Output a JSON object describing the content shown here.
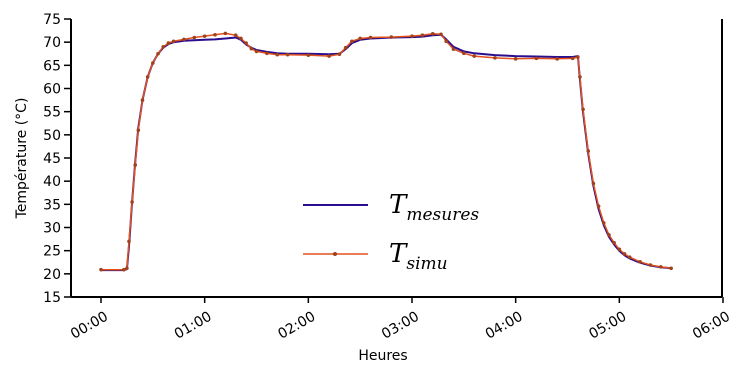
{
  "chart_data": {
    "type": "line",
    "title": "",
    "xlabel": "Heures",
    "ylabel": "Température (°C)",
    "xlim": [
      0,
      6
    ],
    "ylim": [
      15,
      75
    ],
    "xticks": [
      0,
      1,
      2,
      3,
      4,
      5,
      6
    ],
    "xtick_labels": [
      "00:00",
      "01:00",
      "02:00",
      "03:00",
      "04:00",
      "05:00",
      "06:00"
    ],
    "yticks": [
      15,
      20,
      25,
      30,
      35,
      40,
      45,
      50,
      55,
      60,
      65,
      70,
      75
    ],
    "ytick_labels": [
      "15",
      "20",
      "25",
      "30",
      "35",
      "40",
      "45",
      "50",
      "55",
      "60",
      "65",
      "70",
      "75"
    ],
    "grid": false,
    "legend_position": "lower-center",
    "series": [
      {
        "name_base": "T",
        "name_sub": "mesures",
        "color": "#2a0e8f",
        "marker": "none",
        "points": [
          [
            0.0,
            20.8
          ],
          [
            0.22,
            20.8
          ],
          [
            0.25,
            21.0
          ],
          [
            0.27,
            26.0
          ],
          [
            0.3,
            35.5
          ],
          [
            0.33,
            44.0
          ],
          [
            0.36,
            51.5
          ],
          [
            0.4,
            57.5
          ],
          [
            0.45,
            62.5
          ],
          [
            0.5,
            65.5
          ],
          [
            0.55,
            67.5
          ],
          [
            0.6,
            68.8
          ],
          [
            0.65,
            69.6
          ],
          [
            0.7,
            70.0
          ],
          [
            0.8,
            70.3
          ],
          [
            0.9,
            70.4
          ],
          [
            1.0,
            70.5
          ],
          [
            1.1,
            70.6
          ],
          [
            1.2,
            70.8
          ],
          [
            1.3,
            71.0
          ],
          [
            1.35,
            70.5
          ],
          [
            1.4,
            69.5
          ],
          [
            1.45,
            68.8
          ],
          [
            1.5,
            68.3
          ],
          [
            1.6,
            67.9
          ],
          [
            1.7,
            67.6
          ],
          [
            1.8,
            67.5
          ],
          [
            2.0,
            67.5
          ],
          [
            2.2,
            67.4
          ],
          [
            2.3,
            67.5
          ],
          [
            2.36,
            68.5
          ],
          [
            2.42,
            69.8
          ],
          [
            2.5,
            70.5
          ],
          [
            2.6,
            70.8
          ],
          [
            2.8,
            71.0
          ],
          [
            3.0,
            71.1
          ],
          [
            3.1,
            71.2
          ],
          [
            3.2,
            71.5
          ],
          [
            3.28,
            71.6
          ],
          [
            3.33,
            70.6
          ],
          [
            3.4,
            69.0
          ],
          [
            3.5,
            68.0
          ],
          [
            3.6,
            67.6
          ],
          [
            3.8,
            67.2
          ],
          [
            4.0,
            67.0
          ],
          [
            4.2,
            66.9
          ],
          [
            4.4,
            66.8
          ],
          [
            4.55,
            66.8
          ],
          [
            4.6,
            67.0
          ],
          [
            4.62,
            62.0
          ],
          [
            4.65,
            55.0
          ],
          [
            4.7,
            46.0
          ],
          [
            4.75,
            39.0
          ],
          [
            4.8,
            34.0
          ],
          [
            4.85,
            30.5
          ],
          [
            4.9,
            28.0
          ],
          [
            4.95,
            26.3
          ],
          [
            5.0,
            25.0
          ],
          [
            5.05,
            24.0
          ],
          [
            5.1,
            23.3
          ],
          [
            5.2,
            22.4
          ],
          [
            5.3,
            21.8
          ],
          [
            5.4,
            21.4
          ],
          [
            5.5,
            21.2
          ]
        ]
      },
      {
        "name_base": "T",
        "name_sub": "simu",
        "color": "#e3521d",
        "marker_color": "#a0421c",
        "marker": "dot",
        "points": [
          [
            0.0,
            20.9
          ],
          [
            0.22,
            20.9
          ],
          [
            0.25,
            21.2
          ],
          [
            0.27,
            27.0
          ],
          [
            0.3,
            35.5
          ],
          [
            0.33,
            43.5
          ],
          [
            0.36,
            51.0
          ],
          [
            0.4,
            57.5
          ],
          [
            0.45,
            62.5
          ],
          [
            0.5,
            65.5
          ],
          [
            0.55,
            67.5
          ],
          [
            0.6,
            69.0
          ],
          [
            0.65,
            69.8
          ],
          [
            0.7,
            70.2
          ],
          [
            0.8,
            70.6
          ],
          [
            0.9,
            71.0
          ],
          [
            1.0,
            71.3
          ],
          [
            1.1,
            71.6
          ],
          [
            1.2,
            71.9
          ],
          [
            1.3,
            71.5
          ],
          [
            1.35,
            70.8
          ],
          [
            1.4,
            69.8
          ],
          [
            1.45,
            68.6
          ],
          [
            1.5,
            68.0
          ],
          [
            1.6,
            67.6
          ],
          [
            1.7,
            67.3
          ],
          [
            1.8,
            67.3
          ],
          [
            2.0,
            67.2
          ],
          [
            2.2,
            67.0
          ],
          [
            2.3,
            67.4
          ],
          [
            2.36,
            68.8
          ],
          [
            2.42,
            70.2
          ],
          [
            2.5,
            70.8
          ],
          [
            2.6,
            71.0
          ],
          [
            2.8,
            71.1
          ],
          [
            3.0,
            71.3
          ],
          [
            3.1,
            71.5
          ],
          [
            3.2,
            71.8
          ],
          [
            3.28,
            71.7
          ],
          [
            3.33,
            70.2
          ],
          [
            3.4,
            68.5
          ],
          [
            3.5,
            67.6
          ],
          [
            3.6,
            67.0
          ],
          [
            3.8,
            66.6
          ],
          [
            4.0,
            66.4
          ],
          [
            4.2,
            66.5
          ],
          [
            4.4,
            66.4
          ],
          [
            4.55,
            66.5
          ],
          [
            4.6,
            66.8
          ],
          [
            4.62,
            62.5
          ],
          [
            4.65,
            55.5
          ],
          [
            4.7,
            46.5
          ],
          [
            4.75,
            39.5
          ],
          [
            4.8,
            34.6
          ],
          [
            4.85,
            31.0
          ],
          [
            4.9,
            28.4
          ],
          [
            4.95,
            26.7
          ],
          [
            5.0,
            25.3
          ],
          [
            5.05,
            24.3
          ],
          [
            5.1,
            23.6
          ],
          [
            5.2,
            22.6
          ],
          [
            5.3,
            21.9
          ],
          [
            5.4,
            21.5
          ],
          [
            5.5,
            21.2
          ]
        ]
      }
    ]
  }
}
